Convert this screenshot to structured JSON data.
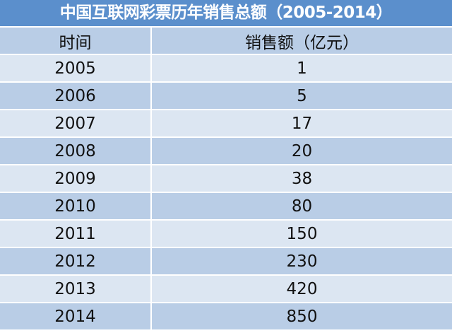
{
  "title": "中国互联网彩票历年销售总额（2005-2014）",
  "headers": [
    "时间",
    "销售额（亿元）"
  ],
  "rows": [
    [
      "2005",
      "1"
    ],
    [
      "2006",
      "5"
    ],
    [
      "2007",
      "17"
    ],
    [
      "2008",
      "20"
    ],
    [
      "2009",
      "38"
    ],
    [
      "2010",
      "80"
    ],
    [
      "2011",
      "150"
    ],
    [
      "2012",
      "230"
    ],
    [
      "2013",
      "420"
    ],
    [
      "2014",
      "850"
    ]
  ],
  "colors": {
    "title_bg": "#5b8fcc",
    "row_dark": "#b9cde6",
    "row_light": "#dce6f2"
  }
}
